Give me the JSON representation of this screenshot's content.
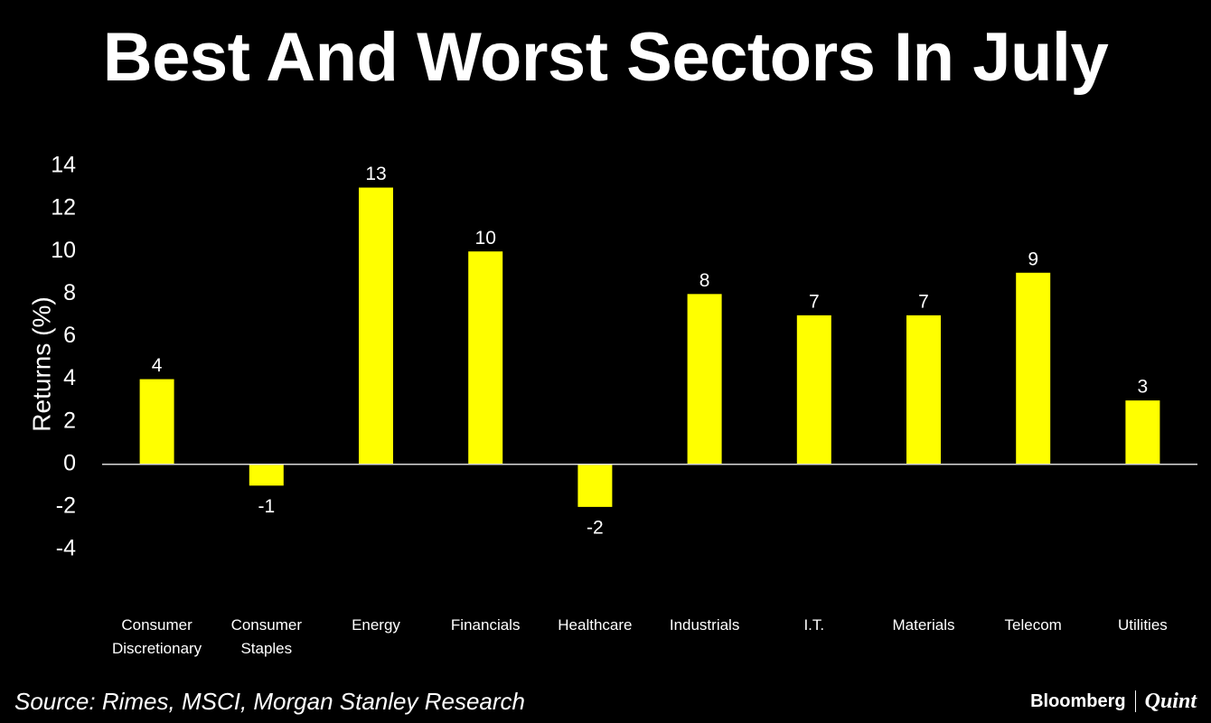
{
  "header": {
    "title": "Best And Worst Sectors In July"
  },
  "chart_data": {
    "type": "bar",
    "title": "Best And Worst Sectors In July",
    "xlabel": "",
    "ylabel": "Returns (%)",
    "categories": [
      [
        "Consumer",
        "Discretionary"
      ],
      [
        "Consumer",
        "Staples"
      ],
      [
        "Energy"
      ],
      [
        "Financials"
      ],
      [
        "Healthcare"
      ],
      [
        "Industrials"
      ],
      [
        "I.T."
      ],
      [
        "Materials"
      ],
      [
        "Telecom"
      ],
      [
        "Utilities"
      ]
    ],
    "values": [
      4,
      -1,
      13,
      10,
      -2,
      8,
      7,
      7,
      9,
      3
    ],
    "data_labels": [
      "4",
      "-1",
      "13",
      "10",
      "-2",
      "8",
      "7",
      "7",
      "9",
      "3"
    ],
    "ylim": [
      -4,
      14
    ],
    "yticks": [
      -4,
      -2,
      0,
      2,
      4,
      6,
      8,
      10,
      12,
      14
    ],
    "ytick_labels": [
      "-4",
      "-2",
      "0",
      "2",
      "4",
      "6",
      "8",
      "10",
      "12",
      "14"
    ],
    "grid": false,
    "legend": "none",
    "colors": {
      "bar": "#ffff00",
      "background": "#000000",
      "text": "#ffffff",
      "axis": "#d9d9d9"
    }
  },
  "footer": {
    "source": "Source: Rimes, MSCI, Morgan Stanley Research",
    "brand_primary": "Bloomberg",
    "brand_secondary": "Quint"
  }
}
